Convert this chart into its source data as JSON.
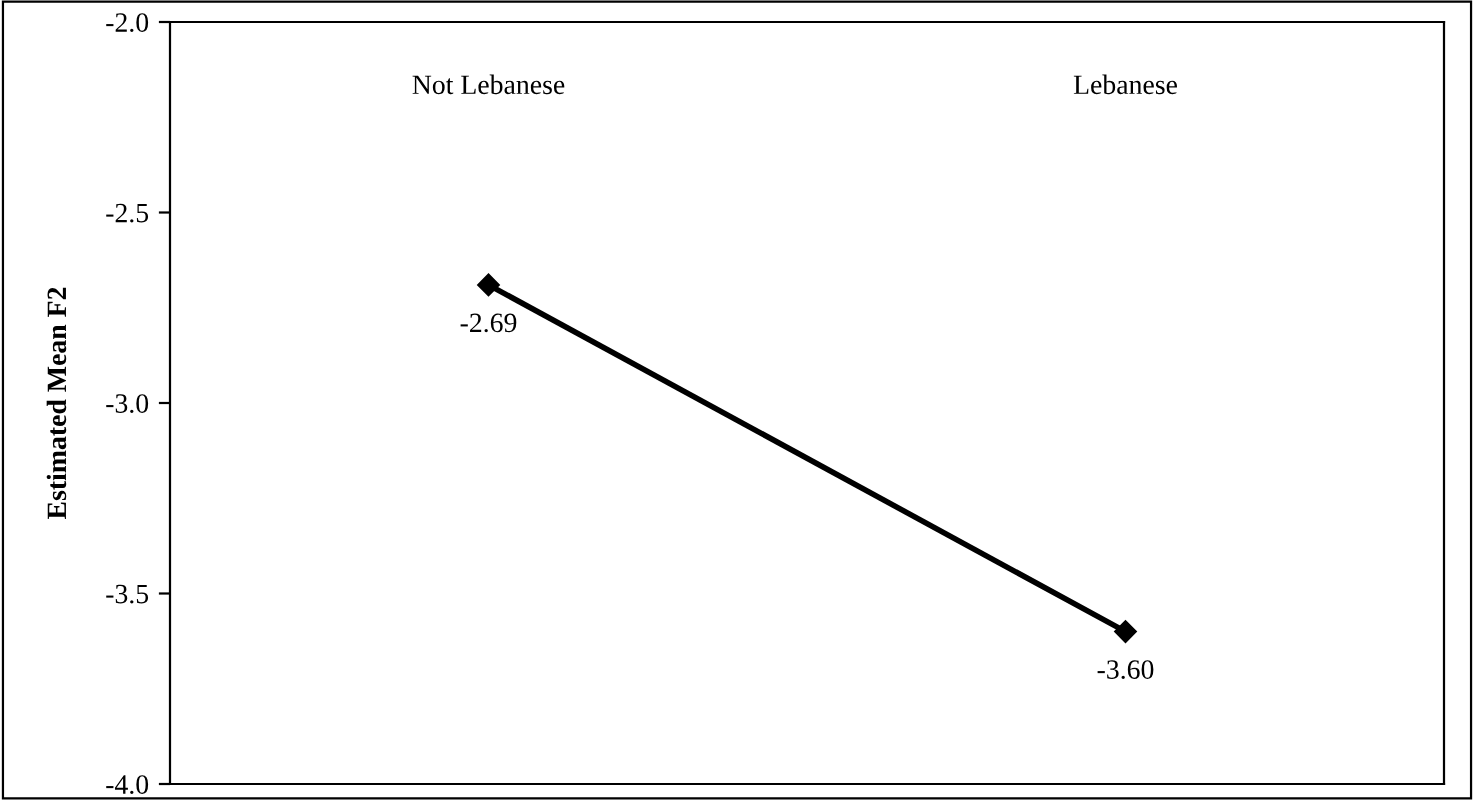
{
  "chart_data": {
    "type": "line",
    "ylabel": "Estimated Mean F2",
    "categories": [
      "Not Lebanese",
      "Lebanese"
    ],
    "series": [
      {
        "color": "#000000",
        "values": [
          -2.69,
          -3.6
        ],
        "value_labels": [
          "-2.69",
          "-3.60"
        ]
      }
    ],
    "ylim": [
      -4.0,
      -2.0
    ],
    "yticks": [
      {
        "value": -4.0,
        "label": "-4.0"
      },
      {
        "value": -3.5,
        "label": "-3.5"
      },
      {
        "value": -3.0,
        "label": "-3.0"
      },
      {
        "value": -2.5,
        "label": "-2.5"
      },
      {
        "value": -2.0,
        "label": "-2.0"
      }
    ],
    "marker": "diamond",
    "line_style": "solid",
    "grid": false,
    "legend": false
  }
}
